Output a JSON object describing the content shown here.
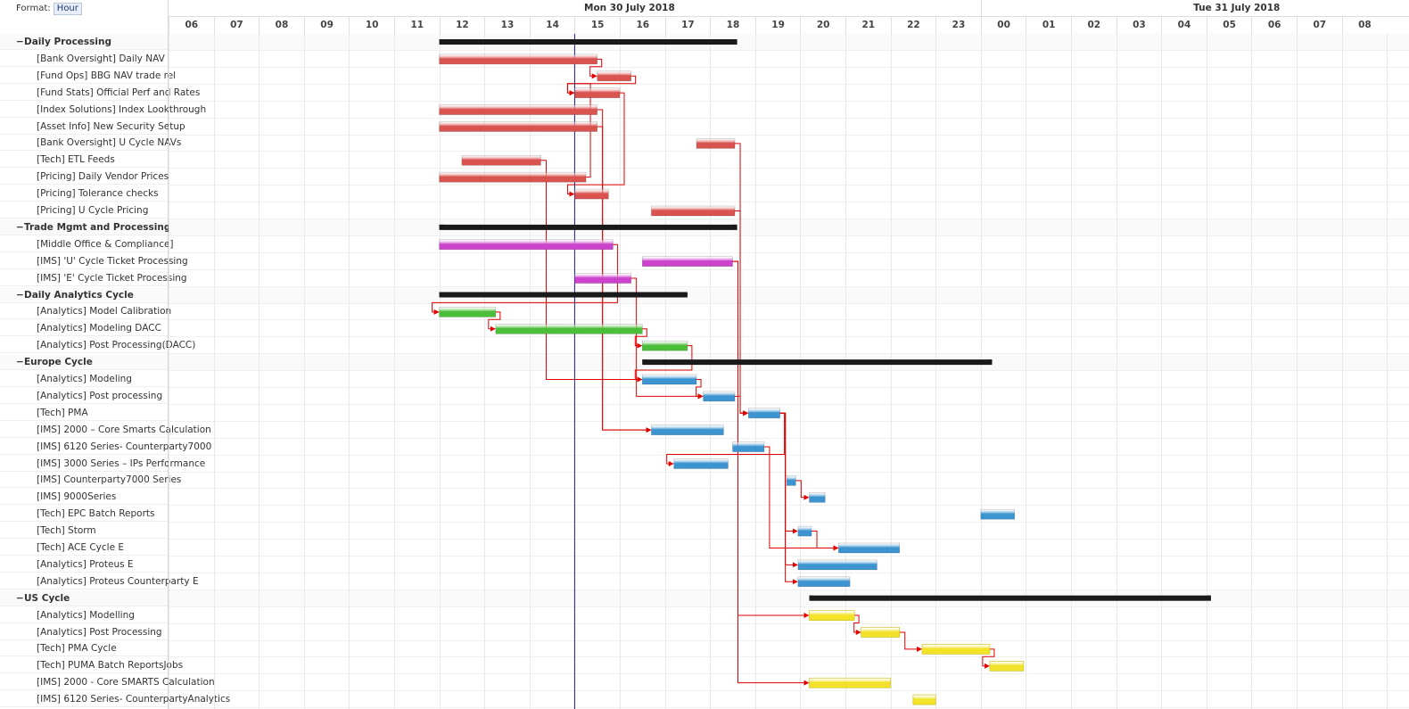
{
  "toolbar": {
    "format_label": "Format:",
    "format_value": "Hour"
  },
  "header": {
    "dates": [
      {
        "label": "Mon 30 July 2018",
        "hour_index": 10
      },
      {
        "label": "Tue 31 July 2018",
        "hour_index": 23.5
      }
    ],
    "hours": [
      "06",
      "07",
      "08",
      "09",
      "10",
      "11",
      "12",
      "13",
      "14",
      "15",
      "16",
      "17",
      "18",
      "19",
      "20",
      "21",
      "22",
      "23",
      "00",
      "01",
      "02",
      "03",
      "04",
      "05",
      "06",
      "07",
      "08"
    ]
  },
  "now_marker_hour": 9.0,
  "colors": {
    "red": "#d9534f",
    "magenta": "#cc44cc",
    "green": "#4cbf3a",
    "blue": "#3c94d0",
    "yellow": "#f2e32a",
    "summary": "#1a1a1a",
    "link": "#e00000",
    "now": "#1a1a9a"
  },
  "rows": [
    {
      "label": "Daily Processing",
      "type": "group",
      "start": 6.0,
      "end": 12.6
    },
    {
      "label": "[Bank Oversight] Daily NAV",
      "type": "task",
      "color": "red",
      "start": 6.0,
      "end": 9.5
    },
    {
      "label": "[Fund Ops] BBG NAV trade rel",
      "type": "task",
      "color": "red",
      "start": 9.5,
      "end": 10.25
    },
    {
      "label": "[Fund Stats] Official Perf and Rates",
      "type": "task",
      "color": "red",
      "start": 9.0,
      "end": 10.0
    },
    {
      "label": "[Index Solutions] Index Lookthrough",
      "type": "task",
      "color": "red",
      "start": 6.0,
      "end": 9.5
    },
    {
      "label": "[Asset Info] New Security Setup",
      "type": "task",
      "color": "red",
      "start": 6.0,
      "end": 9.5
    },
    {
      "label": "[Bank Oversight] U Cycle NAVs",
      "type": "task",
      "color": "red",
      "start": 11.7,
      "end": 12.55
    },
    {
      "label": "[Tech] ETL Feeds",
      "type": "task",
      "color": "red",
      "start": 6.5,
      "end": 8.25
    },
    {
      "label": "[Pricing] Daily Vendor Prices",
      "type": "task",
      "color": "red",
      "start": 6.0,
      "end": 9.25
    },
    {
      "label": "[Pricing] Tolerance checks",
      "type": "task",
      "color": "red",
      "start": 9.0,
      "end": 9.75
    },
    {
      "label": "[Pricing] U Cycle Pricing",
      "type": "task",
      "color": "red",
      "start": 10.7,
      "end": 12.55
    },
    {
      "label": "Trade Mgmt and Processing",
      "type": "group",
      "start": 6.0,
      "end": 12.6
    },
    {
      "label": "[Middle Office & Compliance]",
      "type": "task",
      "color": "magenta",
      "start": 6.0,
      "end": 9.85
    },
    {
      "label": "[IMS] 'U' Cycle Ticket Processing",
      "type": "task",
      "color": "magenta",
      "start": 10.5,
      "end": 12.5
    },
    {
      "label": "[IMS] 'E' Cycle Ticket Processing",
      "type": "task",
      "color": "magenta",
      "start": 9.0,
      "end": 10.25
    },
    {
      "label": "Daily Analytics Cycle",
      "type": "group",
      "start": 6.0,
      "end": 11.5
    },
    {
      "label": "[Analytics] Model Calibration",
      "type": "task",
      "color": "green",
      "start": 6.0,
      "end": 7.25
    },
    {
      "label": "[Analytics] Modeling DACC",
      "type": "task",
      "color": "green",
      "start": 7.25,
      "end": 10.5
    },
    {
      "label": "[Analytics] Post Processing(DACC)",
      "type": "task",
      "color": "green",
      "start": 10.5,
      "end": 11.5
    },
    {
      "label": "Europe Cycle",
      "type": "group",
      "start": 10.5,
      "end": 18.25
    },
    {
      "label": "[Analytics] Modeling",
      "type": "task",
      "color": "blue",
      "start": 10.5,
      "end": 11.7
    },
    {
      "label": "[Analytics] Post processing",
      "type": "task",
      "color": "blue",
      "start": 11.85,
      "end": 12.55
    },
    {
      "label": "[Tech] PMA",
      "type": "task",
      "color": "blue",
      "start": 12.85,
      "end": 13.55
    },
    {
      "label": "[IMS] 2000 – Core Smarts Calculation",
      "type": "task",
      "color": "blue",
      "start": 10.7,
      "end": 12.3
    },
    {
      "label": "[IMS] 6120 Series- Counterparty7000",
      "type": "task",
      "color": "blue",
      "start": 12.5,
      "end": 13.2
    },
    {
      "label": "[IMS] 3000 Series – IPs Performance",
      "type": "task",
      "color": "blue",
      "start": 11.2,
      "end": 12.4
    },
    {
      "label": "[IMS] Counterparty7000 Series",
      "type": "task",
      "color": "blue",
      "start": 13.7,
      "end": 13.9
    },
    {
      "label": "[IMS] 9000Series",
      "type": "task",
      "color": "blue",
      "start": 14.2,
      "end": 14.55
    },
    {
      "label": "[Tech] EPC Batch Reports",
      "type": "task",
      "color": "blue",
      "start": 18.0,
      "end": 18.75
    },
    {
      "label": "[Tech] Storm",
      "type": "task",
      "color": "blue",
      "start": 13.95,
      "end": 14.25
    },
    {
      "label": "[Tech] ACE Cycle E",
      "type": "task",
      "color": "blue",
      "start": 14.85,
      "end": 16.2
    },
    {
      "label": "[Analytics] Proteus E",
      "type": "task",
      "color": "blue",
      "start": 13.95,
      "end": 15.7
    },
    {
      "label": "[Analytics] Proteus Counterparty E",
      "type": "task",
      "color": "blue",
      "start": 13.95,
      "end": 15.1
    },
    {
      "label": "US Cycle",
      "type": "group",
      "start": 14.2,
      "end": 23.1
    },
    {
      "label": "[Analytics] Modelling",
      "type": "task",
      "color": "yellow",
      "start": 14.2,
      "end": 15.2
    },
    {
      "label": "[Analytics] Post Processing",
      "type": "task",
      "color": "yellow",
      "start": 15.35,
      "end": 16.2
    },
    {
      "label": "[Tech] PMA Cycle",
      "type": "task",
      "color": "yellow",
      "start": 16.7,
      "end": 18.2
    },
    {
      "label": "[Tech] PUMA Batch ReportsJobs",
      "type": "task",
      "color": "yellow",
      "start": 18.2,
      "end": 18.95
    },
    {
      "label": "[IMS] 2000 - Core SMARTS Calculation",
      "type": "task",
      "color": "yellow",
      "start": 14.2,
      "end": 16.0
    },
    {
      "label": "[IMS] 6120 Series- CounterpartyAnalytics",
      "type": "task",
      "color": "yellow",
      "start": 16.5,
      "end": 17.0
    }
  ],
  "links": [
    [
      1,
      2
    ],
    [
      8,
      3
    ],
    [
      2,
      3
    ],
    [
      3,
      9
    ],
    [
      7,
      20
    ],
    [
      4,
      23
    ],
    [
      5,
      23
    ],
    [
      12,
      16
    ],
    [
      16,
      17
    ],
    [
      17,
      18
    ],
    [
      14,
      21
    ],
    [
      18,
      20
    ],
    [
      20,
      21
    ],
    [
      21,
      22
    ],
    [
      6,
      22
    ],
    [
      10,
      22
    ],
    [
      13,
      34
    ],
    [
      22,
      25
    ],
    [
      26,
      27
    ],
    [
      22,
      29
    ],
    [
      29,
      30
    ],
    [
      22,
      31
    ],
    [
      22,
      32
    ],
    [
      24,
      30
    ],
    [
      34,
      35
    ],
    [
      35,
      36
    ],
    [
      36,
      37
    ],
    [
      13,
      38
    ]
  ]
}
